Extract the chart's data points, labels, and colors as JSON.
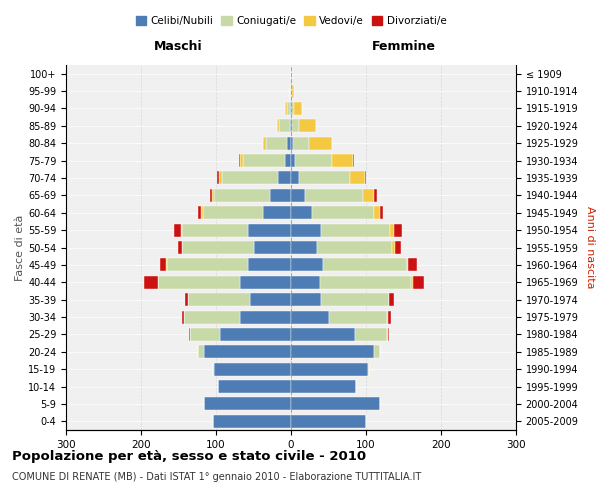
{
  "age_groups": [
    "0-4",
    "5-9",
    "10-14",
    "15-19",
    "20-24",
    "25-29",
    "30-34",
    "35-39",
    "40-44",
    "45-49",
    "50-54",
    "55-59",
    "60-64",
    "65-69",
    "70-74",
    "75-79",
    "80-84",
    "85-89",
    "90-94",
    "95-99",
    "100+"
  ],
  "birth_years": [
    "2005-2009",
    "2000-2004",
    "1995-1999",
    "1990-1994",
    "1985-1989",
    "1980-1984",
    "1975-1979",
    "1970-1974",
    "1965-1969",
    "1960-1964",
    "1955-1959",
    "1950-1954",
    "1945-1949",
    "1940-1944",
    "1935-1939",
    "1930-1934",
    "1925-1929",
    "1920-1924",
    "1915-1919",
    "1910-1914",
    "≤ 1909"
  ],
  "maschi": {
    "coniugati": [
      0,
      0,
      0,
      1,
      8,
      40,
      75,
      82,
      110,
      108,
      95,
      88,
      80,
      75,
      74,
      56,
      28,
      14,
      5,
      1,
      0
    ],
    "celibi": [
      104,
      116,
      97,
      103,
      116,
      95,
      68,
      55,
      68,
      58,
      50,
      58,
      38,
      28,
      18,
      8,
      5,
      2,
      1,
      0,
      0
    ],
    "vedovi": [
      0,
      0,
      0,
      0,
      0,
      0,
      0,
      0,
      0,
      1,
      1,
      1,
      2,
      3,
      4,
      4,
      5,
      3,
      2,
      1,
      0
    ],
    "divorziati": [
      0,
      0,
      0,
      0,
      0,
      1,
      3,
      5,
      18,
      8,
      5,
      9,
      4,
      2,
      3,
      1,
      0,
      0,
      0,
      0,
      0
    ]
  },
  "femmine": {
    "coniugate": [
      0,
      0,
      0,
      2,
      9,
      43,
      78,
      90,
      122,
      112,
      100,
      92,
      82,
      78,
      68,
      50,
      22,
      10,
      4,
      1,
      0
    ],
    "nubili": [
      100,
      118,
      86,
      102,
      110,
      85,
      50,
      40,
      38,
      42,
      35,
      40,
      28,
      18,
      10,
      5,
      2,
      1,
      0,
      0,
      0
    ],
    "vedove": [
      0,
      0,
      0,
      0,
      0,
      1,
      1,
      1,
      2,
      2,
      4,
      5,
      8,
      15,
      20,
      28,
      30,
      22,
      10,
      3,
      1
    ],
    "divorziate": [
      0,
      0,
      0,
      0,
      0,
      1,
      4,
      6,
      15,
      12,
      7,
      11,
      5,
      3,
      2,
      1,
      0,
      0,
      0,
      0,
      0
    ]
  },
  "color_celibi": "#4E7DB5",
  "color_coniugati": "#C8D9A8",
  "color_vedovi": "#F5C842",
  "color_divorziati": "#CC1111",
  "title": "Popolazione per età, sesso e stato civile - 2010",
  "subtitle": "COMUNE DI RENATE (MB) - Dati ISTAT 1° gennaio 2010 - Elaborazione TUTTITALIA.IT",
  "xlabel_left": "Maschi",
  "xlabel_right": "Femmine",
  "ylabel_left": "Fasce di età",
  "ylabel_right": "Anni di nascita",
  "xlim": 300,
  "bg_color": "#f0f0f0",
  "bar_height": 0.75
}
